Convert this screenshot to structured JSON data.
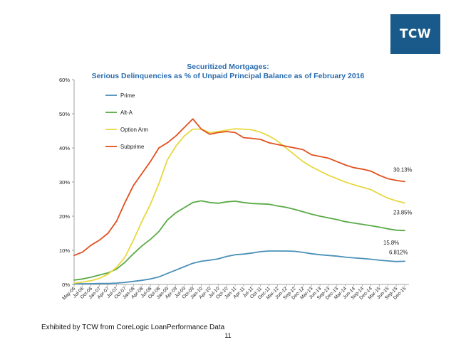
{
  "logo": {
    "text": "TCW"
  },
  "footer": {
    "source": "Exhibited by TCW from CoreLogic LoanPerformance Data",
    "page": "11"
  },
  "chart_data": {
    "type": "line",
    "title": "Securitized Mortgages:",
    "subtitle": "Serious Delinquencies as % of Unpaid Principal Balance as of  February 2016",
    "xlabel": "",
    "ylabel": "",
    "ylim": [
      0,
      60
    ],
    "yticks": [
      "0%",
      "10%",
      "20%",
      "30%",
      "40%",
      "50%",
      "60%"
    ],
    "categories": [
      "May-06",
      "Jul-06",
      "Oct-06",
      "Jan-07",
      "Apr-07",
      "Jul-07",
      "Oct-07",
      "Jan-08",
      "Apr-08",
      "Jul-08",
      "Oct-08",
      "Jan-09",
      "Apr-09",
      "Jul-09",
      "Oct-09",
      "Jan-10",
      "Apr-10",
      "Jul-10",
      "Oct-10",
      "Jan-11",
      "Apr-11",
      "Jul-11",
      "Oct-11",
      "Dec-11",
      "Mar-12",
      "Jun-12",
      "Sep-12",
      "Dec-12",
      "Mar-13",
      "Jun-13",
      "Sep-13",
      "Dec-13",
      "Mar-14",
      "Jun-14",
      "Sep-14",
      "Dec-14",
      "Mar-15",
      "Jun-15",
      "Sep-15",
      "Dec-15"
    ],
    "grid": false,
    "legend": "top-left",
    "series": [
      {
        "name": "Prime",
        "color": "#4a90b8",
        "values": [
          0.2,
          0.2,
          0.2,
          0.3,
          0.3,
          0.4,
          0.6,
          0.9,
          1.2,
          1.6,
          2.2,
          3.2,
          4.2,
          5.2,
          6.2,
          6.8,
          7.1,
          7.5,
          8.2,
          8.7,
          8.9,
          9.2,
          9.6,
          9.8,
          9.8,
          9.8,
          9.7,
          9.4,
          9.0,
          8.7,
          8.5,
          8.3,
          8.0,
          7.8,
          7.6,
          7.4,
          7.1,
          6.9,
          6.7,
          6.8
        ]
      },
      {
        "name": "Alt-A",
        "color": "#5aaa46",
        "values": [
          1.3,
          1.6,
          2.1,
          2.8,
          3.4,
          4.5,
          6.5,
          9.0,
          11.3,
          13.2,
          15.5,
          18.9,
          21.0,
          22.5,
          24.0,
          24.5,
          24.0,
          23.8,
          24.2,
          24.4,
          24.0,
          23.7,
          23.6,
          23.5,
          23.0,
          22.6,
          22.0,
          21.3,
          20.6,
          20.0,
          19.5,
          19.0,
          18.4,
          18.0,
          17.6,
          17.2,
          16.8,
          16.3,
          15.9,
          15.8
        ]
      },
      {
        "name": "Option Arm",
        "color": "#e8d840",
        "values": [
          0.4,
          0.7,
          1.1,
          1.8,
          3.0,
          5.0,
          8.0,
          13.0,
          18.5,
          23.5,
          29.5,
          36.5,
          40.5,
          43.5,
          45.5,
          45.5,
          44.5,
          44.8,
          45.2,
          45.6,
          45.5,
          45.3,
          44.6,
          43.5,
          42.0,
          40.0,
          38.0,
          36.0,
          34.5,
          33.2,
          32.0,
          31.0,
          30.0,
          29.2,
          28.5,
          27.8,
          26.5,
          25.3,
          24.5,
          23.85
        ]
      },
      {
        "name": "Subprime",
        "color": "#e2501e",
        "values": [
          8.5,
          9.5,
          11.5,
          13.0,
          15.0,
          18.5,
          24.0,
          29.0,
          32.5,
          36.0,
          40.0,
          41.5,
          43.5,
          46.0,
          48.5,
          45.5,
          44.0,
          44.5,
          44.8,
          44.5,
          43.0,
          42.8,
          42.5,
          41.5,
          41.0,
          40.5,
          40.0,
          39.5,
          38.0,
          37.5,
          37.0,
          36.0,
          35.0,
          34.2,
          33.8,
          33.2,
          32.0,
          31.0,
          30.5,
          30.13
        ]
      }
    ],
    "end_labels": [
      {
        "series": "Subprime",
        "text": "30.13%"
      },
      {
        "series": "Option Arm",
        "text": "23.85%"
      },
      {
        "series": "Alt-A",
        "text": "15.8%"
      },
      {
        "series": "Prime",
        "text": "6.812%"
      }
    ]
  }
}
